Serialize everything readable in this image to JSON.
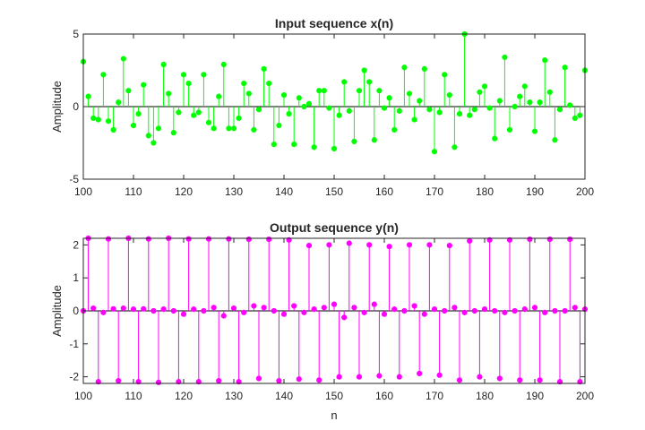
{
  "chart_data": [
    {
      "type": "stem",
      "title": "Input sequence x(n)",
      "xlabel": "",
      "ylabel": "Amplitude",
      "xlim": [
        100,
        200
      ],
      "ylim": [
        -5,
        5
      ],
      "xticks": [
        100,
        110,
        120,
        130,
        140,
        150,
        160,
        170,
        180,
        190,
        200
      ],
      "yticks": [
        -5,
        0,
        5
      ],
      "grid": false,
      "color": "#00ff00",
      "x_start": 100,
      "values": [
        3.1,
        0.7,
        -0.8,
        -0.9,
        2.2,
        -1.0,
        -1.6,
        0.3,
        3.3,
        1.1,
        -1.3,
        -0.5,
        1.5,
        -2.0,
        -2.5,
        -1.5,
        2.9,
        0.9,
        -1.8,
        -0.4,
        2.2,
        1.6,
        -0.6,
        -0.4,
        2.2,
        -1.1,
        -1.5,
        0.7,
        2.9,
        -1.5,
        -1.5,
        -0.8,
        1.6,
        0.9,
        -1.6,
        -0.2,
        2.6,
        1.6,
        -2.6,
        -1.3,
        0.8,
        -0.5,
        -2.6,
        0.6,
        0.0,
        0.2,
        -2.8,
        1.1,
        1.1,
        -0.1,
        -2.9,
        -0.6,
        1.7,
        -0.3,
        -2.4,
        1.1,
        2.5,
        1.7,
        -2.3,
        1.1,
        -0.1,
        0.6,
        -1.6,
        -0.3,
        2.7,
        0.9,
        -0.9,
        0.4,
        2.6,
        -0.2,
        -3.1,
        -0.4,
        2.2,
        0.8,
        -2.8,
        -0.5,
        5.0,
        -0.6,
        -0.2,
        1.0,
        1.4,
        -0.1,
        -2.2,
        0.4,
        3.4,
        -1.6,
        0.0,
        0.7,
        1.4,
        0.3,
        -1.7,
        0.3,
        3.2,
        1.0,
        -2.3,
        -0.2,
        2.7,
        0.1,
        -0.8,
        -0.6,
        2.5
      ]
    },
    {
      "type": "stem",
      "title": "Output sequence y(n)",
      "xlabel": "n",
      "ylabel": "Amplitude",
      "xlim": [
        100,
        200
      ],
      "ylim": [
        -2.2,
        2.2
      ],
      "xticks": [
        100,
        110,
        120,
        130,
        140,
        150,
        160,
        170,
        180,
        190,
        200
      ],
      "yticks": [
        -2,
        -1,
        0,
        1,
        2
      ],
      "grid": false,
      "color": "#ff00ff",
      "x_start": 100,
      "values": [
        0.0,
        2.2,
        0.08,
        -2.15,
        -0.05,
        2.18,
        0.06,
        -2.12,
        0.08,
        2.2,
        0.05,
        -2.15,
        0.06,
        2.18,
        0.0,
        -2.17,
        0.05,
        2.2,
        0.0,
        -2.15,
        -0.1,
        2.18,
        0.05,
        -2.15,
        0.0,
        2.18,
        0.1,
        -2.12,
        -0.15,
        2.18,
        0.08,
        -2.15,
        -0.05,
        2.17,
        0.15,
        -2.05,
        0.1,
        2.17,
        0.0,
        -2.12,
        -0.1,
        2.15,
        0.15,
        -2.07,
        -0.05,
        1.98,
        0.05,
        -2.1,
        0.1,
        2.0,
        0.2,
        -2.0,
        -0.2,
        2.05,
        0.1,
        -2.0,
        -0.05,
        2.0,
        0.2,
        -1.97,
        -0.1,
        1.95,
        0.05,
        -2.0,
        0.0,
        2.0,
        0.15,
        -1.9,
        -0.1,
        2.0,
        0.05,
        -1.95,
        0.0,
        1.98,
        0.1,
        -2.1,
        -0.05,
        2.12,
        0.0,
        -2.0,
        0.05,
        2.15,
        0.0,
        -2.05,
        -0.05,
        2.15,
        0.0,
        -2.1,
        0.05,
        2.17,
        0.1,
        -2.1,
        -0.05,
        2.17,
        0.0,
        -2.15,
        0.0,
        2.17,
        0.1,
        -2.15,
        0.05
      ]
    }
  ]
}
